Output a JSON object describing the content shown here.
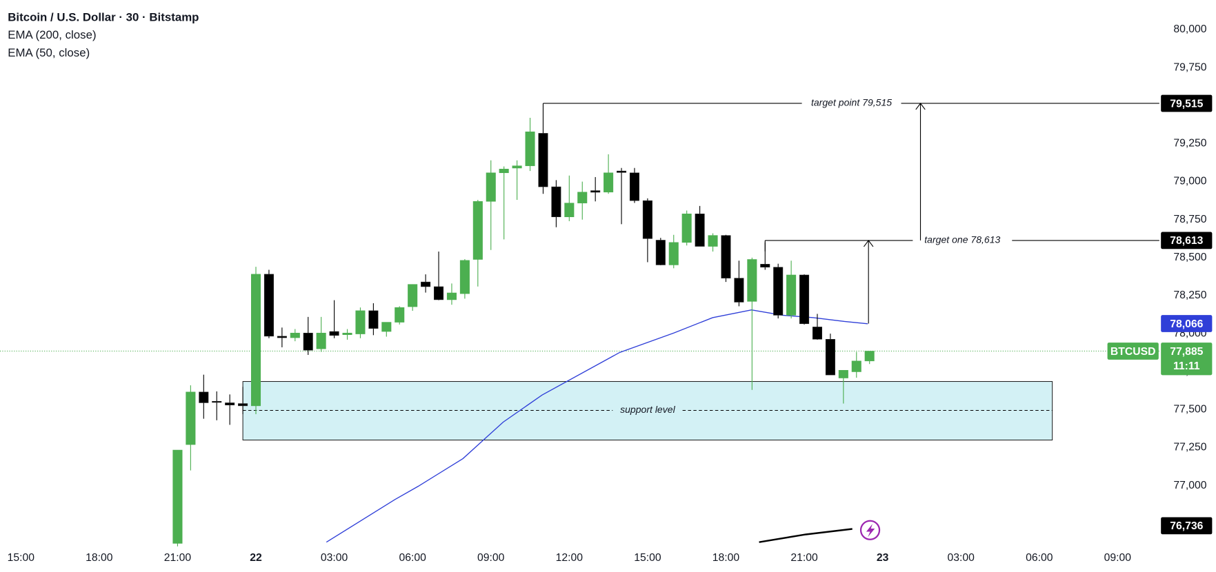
{
  "chart_data": {
    "type": "candlestick",
    "title": "Bitcoin / U.S. Dollar · 30 · Bitstamp",
    "up_color": "#4caf50",
    "down_color": "#000000",
    "x": [
      6,
      6.5,
      7,
      7.5,
      8,
      8.5,
      9,
      9.5,
      10,
      10.5,
      11,
      11.5,
      12,
      12.5,
      13,
      13.5,
      14,
      14.5,
      15,
      15.5,
      16,
      16.5,
      17,
      17.5,
      18,
      18.5,
      19,
      19.5,
      20,
      20.5,
      21,
      21.5,
      22,
      22.5,
      23,
      23.5,
      24,
      24.5,
      25,
      25.5,
      26,
      26.5,
      27,
      27.5,
      28,
      28.5,
      29,
      29.5,
      30,
      30.5,
      31,
      31.5,
      32,
      32.5
    ],
    "open": [
      76620,
      77270,
      77616,
      77555,
      77545,
      77540,
      77525,
      78391,
      77983,
      77973,
      78004,
      77900,
      78014,
      77993,
      77998,
      78151,
      78014,
      78075,
      78177,
      78340,
      78309,
      78223,
      78263,
      78488,
      78870,
      79058,
      79089,
      79104,
      79318,
      78966,
      78768,
      78859,
      78941,
      78931,
      79070,
      79058,
      78875,
      78615,
      78452,
      78600,
      78788,
      78574,
      78646,
      78365,
      78212,
      78457,
      78437,
      78121,
      78386,
      78044,
      77963,
      77708,
      77749,
      77820
    ],
    "high": [
      77234,
      77660,
      77730,
      77620,
      77600,
      77650,
      78440,
      78420,
      78040,
      78030,
      78110,
      78110,
      78220,
      78030,
      78172,
      78200,
      78060,
      78180,
      78324,
      78390,
      78540,
      78330,
      78490,
      78880,
      79140,
      79100,
      79140,
      79420,
      79515,
      79010,
      79040,
      79000,
      79030,
      79180,
      79090,
      79090,
      78890,
      78630,
      78650,
      78810,
      78840,
      78660,
      78650,
      78480,
      78500,
      78600,
      78460,
      78480,
      78390,
      78130,
      78000,
      77760,
      77880,
      77870
    ],
    "low": [
      76600,
      77100,
      77440,
      77430,
      77400,
      77470,
      77470,
      77970,
      77910,
      77950,
      77860,
      77880,
      77970,
      77960,
      77970,
      77990,
      77980,
      78060,
      78150,
      78270,
      78220,
      78190,
      78230,
      78310,
      78550,
      78620,
      78880,
      79070,
      78920,
      78700,
      78740,
      78750,
      78870,
      78920,
      78720,
      78860,
      78470,
      78450,
      78430,
      78580,
      78580,
      78540,
      78340,
      78180,
      77630,
      78420,
      78100,
      78100,
      78060,
      77960,
      77730,
      77540,
      77710,
      77800
    ],
    "close": [
      77234,
      77616,
      77545,
      77550,
      77530,
      77525,
      78391,
      77983,
      77973,
      78004,
      77891,
      78004,
      77988,
      78004,
      78151,
      78034,
      78075,
      78172,
      78324,
      78309,
      78223,
      78268,
      78482,
      78870,
      79058,
      79083,
      79104,
      79328,
      78966,
      78768,
      78859,
      78931,
      78930,
      79058,
      79060,
      78875,
      78625,
      78452,
      78600,
      78788,
      78574,
      78646,
      78365,
      78207,
      78488,
      78437,
      78121,
      78386,
      78065,
      77963,
      77728,
      77759,
      77820,
      77885
    ],
    "series": [
      {
        "name": "EMA (200, close)",
        "color": "#000000",
        "x": [
          28.27,
          30.06,
          31.84
        ],
        "values": [
          76628,
          76679,
          76715
        ]
      },
      {
        "name": "EMA (50, close)",
        "color": "#2f3fd8",
        "x": [
          11.7,
          14.32,
          15.21,
          16.93,
          18.47,
          19.96,
          22.93,
          25.0,
          26.49,
          27.98,
          29.17,
          30.35,
          31.54,
          32.43
        ],
        "values": [
          76628,
          76908,
          76995,
          77178,
          77418,
          77596,
          77876,
          78004,
          78105,
          78156,
          78121,
          78105,
          78080,
          78065
        ]
      }
    ],
    "xlim": [
      -0.8,
      43.6
    ],
    "xticks": [
      {
        "value": 0,
        "label": "15:00"
      },
      {
        "value": 3,
        "label": "18:00"
      },
      {
        "value": 6,
        "label": "21:00"
      },
      {
        "value": 9,
        "label": "22"
      },
      {
        "value": 12,
        "label": "03:00"
      },
      {
        "value": 15,
        "label": "06:00"
      },
      {
        "value": 18,
        "label": "09:00"
      },
      {
        "value": 21,
        "label": "12:00"
      },
      {
        "value": 24,
        "label": "15:00"
      },
      {
        "value": 27,
        "label": "18:00"
      },
      {
        "value": 30,
        "label": "21:00"
      },
      {
        "value": 33,
        "label": "23"
      },
      {
        "value": 36,
        "label": "03:00"
      },
      {
        "value": 39,
        "label": "06:00"
      },
      {
        "value": 42,
        "label": "09:00"
      }
    ],
    "ylim": [
      76600,
      80195
    ],
    "yticks": [
      {
        "value": 77000,
        "label": "77,000"
      },
      {
        "value": 77250,
        "label": "77,250"
      },
      {
        "value": 77500,
        "label": "77,500"
      },
      {
        "value": 77750,
        "label": "77,750"
      },
      {
        "value": 78000,
        "label": "78,000"
      },
      {
        "value": 78250,
        "label": "78,250"
      },
      {
        "value": 78500,
        "label": "78,500"
      },
      {
        "value": 78750,
        "label": "78,750"
      },
      {
        "value": 79000,
        "label": "79,000"
      },
      {
        "value": 79250,
        "label": "79,250"
      },
      {
        "value": 79500,
        "label": "79,500"
      },
      {
        "value": 79750,
        "label": "79,750"
      },
      {
        "value": 80000,
        "label": "80,000"
      }
    ],
    "support": {
      "label": "support level",
      "low": 77300,
      "high": 77685,
      "level": 77495,
      "x_start": 8.5,
      "x_end": 39.5
    },
    "annotations": [
      {
        "text": "target point 79,515",
        "value": 79515,
        "x_start": 20
      },
      {
        "text": "target one 78,613",
        "value": 78613,
        "x_start": 28.5
      }
    ],
    "arrows": [
      {
        "x": 34.45,
        "from": 78613,
        "to": 79515
      },
      {
        "x": 32.46,
        "from": 78066,
        "to": 78613
      }
    ],
    "price_labels": [
      {
        "value": 79515,
        "label": "79,515",
        "color": "#000000"
      },
      {
        "value": 78613,
        "label": "78,613",
        "color": "#000000"
      },
      {
        "value": 78066,
        "label": "78,066",
        "color": "#2f3fd8"
      },
      {
        "value": 76736,
        "label": "76,736",
        "color": "#000000"
      }
    ],
    "last_price": {
      "symbol": "BTCUSD",
      "value": 77885,
      "label": "77,885",
      "countdown": "11:11",
      "color": "#4caf50"
    }
  }
}
